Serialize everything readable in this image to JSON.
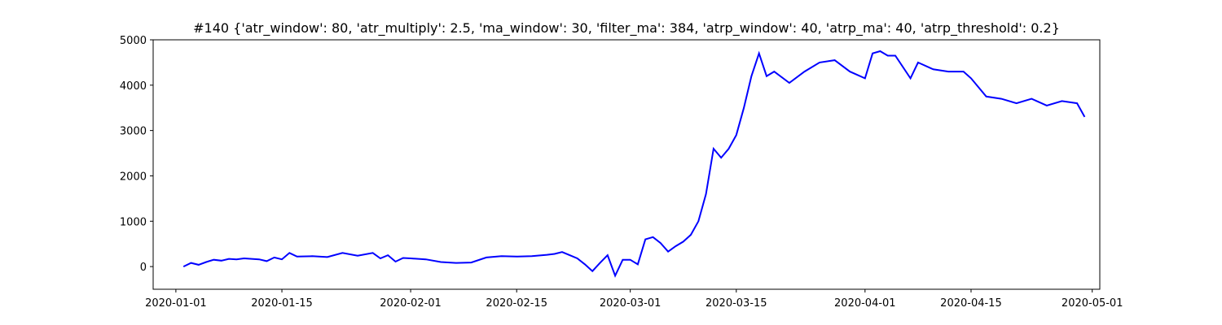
{
  "chart_data": {
    "type": "line",
    "title": "#140 {'atr_window': 80, 'atr_multiply': 2.5, 'ma_window': 30, 'filter_ma': 384, 'atrp_window': 40, 'atrp_ma': 40, 'atrp_threshold': 0.2}",
    "xlabel": "",
    "ylabel": "",
    "x_axis_type": "date",
    "xlim": [
      "2019-12-29",
      "2020-05-02"
    ],
    "ylim": [
      -500,
      5000
    ],
    "x_ticks": [
      "2020-01-01",
      "2020-01-15",
      "2020-02-01",
      "2020-02-15",
      "2020-03-01",
      "2020-03-15",
      "2020-04-01",
      "2020-04-15",
      "2020-05-01"
    ],
    "y_ticks": [
      0,
      1000,
      2000,
      3000,
      4000,
      5000
    ],
    "grid": false,
    "legend": "none",
    "colors": {
      "line": "#0000ff",
      "axes": "#000000",
      "background": "#ffffff"
    },
    "series": [
      {
        "x": [
          "2020-01-02",
          "2020-01-03",
          "2020-01-04",
          "2020-01-05",
          "2020-01-06",
          "2020-01-07",
          "2020-01-08",
          "2020-01-09",
          "2020-01-10",
          "2020-01-11",
          "2020-01-12",
          "2020-01-13",
          "2020-01-14",
          "2020-01-15",
          "2020-01-16",
          "2020-01-17",
          "2020-01-19",
          "2020-01-21",
          "2020-01-23",
          "2020-01-25",
          "2020-01-27",
          "2020-01-28",
          "2020-01-29",
          "2020-01-30",
          "2020-01-31",
          "2020-02-01",
          "2020-02-03",
          "2020-02-05",
          "2020-02-07",
          "2020-02-09",
          "2020-02-11",
          "2020-02-13",
          "2020-02-15",
          "2020-02-17",
          "2020-02-19",
          "2020-02-20",
          "2020-02-21",
          "2020-02-22",
          "2020-02-23",
          "2020-02-24",
          "2020-02-25",
          "2020-02-26",
          "2020-02-27",
          "2020-02-28",
          "2020-02-29",
          "2020-03-01",
          "2020-03-02",
          "2020-03-03",
          "2020-03-04",
          "2020-03-05",
          "2020-03-06",
          "2020-03-07",
          "2020-03-08",
          "2020-03-09",
          "2020-03-10",
          "2020-03-11",
          "2020-03-12",
          "2020-03-13",
          "2020-03-14",
          "2020-03-15",
          "2020-03-16",
          "2020-03-17",
          "2020-03-18",
          "2020-03-19",
          "2020-03-20",
          "2020-03-22",
          "2020-03-24",
          "2020-03-26",
          "2020-03-28",
          "2020-03-30",
          "2020-04-01",
          "2020-04-02",
          "2020-04-03",
          "2020-04-04",
          "2020-04-05",
          "2020-04-07",
          "2020-04-08",
          "2020-04-10",
          "2020-04-12",
          "2020-04-14",
          "2020-04-15",
          "2020-04-17",
          "2020-04-19",
          "2020-04-21",
          "2020-04-23",
          "2020-04-25",
          "2020-04-27",
          "2020-04-29",
          "2020-04-30"
        ],
        "values": [
          0,
          80,
          40,
          100,
          150,
          130,
          170,
          160,
          180,
          170,
          160,
          120,
          200,
          160,
          300,
          220,
          230,
          210,
          300,
          240,
          300,
          180,
          250,
          110,
          190,
          180,
          160,
          100,
          80,
          90,
          200,
          230,
          220,
          230,
          260,
          280,
          320,
          250,
          180,
          50,
          -100,
          80,
          250,
          -200,
          150,
          150,
          50,
          600,
          650,
          520,
          330,
          450,
          550,
          700,
          1000,
          1600,
          2600,
          2400,
          2600,
          2900,
          3500,
          4200,
          4700,
          4200,
          4300,
          4050,
          4300,
          4500,
          4550,
          4300,
          4150,
          4700,
          4750,
          4650,
          4650,
          4150,
          4500,
          4350,
          4300,
          4300,
          4150,
          3750,
          3700,
          3600,
          3700,
          3550,
          3650,
          3600,
          3300
        ]
      }
    ]
  }
}
